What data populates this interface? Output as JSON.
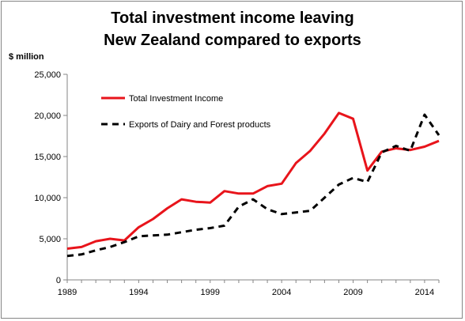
{
  "title_lines": [
    "Total investment income leaving",
    "New Zealand compared to exports"
  ],
  "chart_data": {
    "type": "line",
    "title": "Total investment income leaving New Zealand compared to exports",
    "ylabel": "$ million",
    "xlabel": "",
    "ylim": [
      0,
      25000
    ],
    "yticks": [
      0,
      5000,
      10000,
      15000,
      20000,
      25000
    ],
    "ytick_labels": [
      "0",
      "5,000",
      "10,000",
      "15,000",
      "20,000",
      "25,000"
    ],
    "xlim": [
      1989,
      2015
    ],
    "xticks": [
      1989,
      1994,
      1999,
      2004,
      2009,
      2014
    ],
    "xtick_labels": [
      "1989",
      "1994",
      "1999",
      "2004",
      "2009",
      "2014"
    ],
    "grid": "none",
    "legend_position": "upper-left inside plot",
    "x": [
      1989,
      1990,
      1991,
      1992,
      1993,
      1994,
      1995,
      1996,
      1997,
      1998,
      1999,
      2000,
      2001,
      2002,
      2003,
      2004,
      2005,
      2006,
      2007,
      2008,
      2009,
      2010,
      2011,
      2012,
      2013,
      2014,
      2015
    ],
    "series": [
      {
        "name": "Total Investment Income",
        "color": "#e8141b",
        "style": "solid",
        "values": [
          3800,
          4000,
          4700,
          5000,
          4800,
          6400,
          7400,
          8700,
          9800,
          9500,
          9400,
          10800,
          10500,
          10500,
          11400,
          11700,
          14200,
          15700,
          17800,
          20300,
          19600,
          13300,
          15600,
          16000,
          15800,
          16200,
          16900
        ]
      },
      {
        "name": "Exports of Dairy and Forest products",
        "color": "#000000",
        "style": "dashed",
        "values": [
          2900,
          3100,
          3600,
          4000,
          4600,
          5300,
          5400,
          5500,
          5800,
          6100,
          6300,
          6600,
          8900,
          9800,
          8600,
          8000,
          8200,
          8400,
          10000,
          11600,
          12400,
          11900,
          15500,
          16300,
          15700,
          20100,
          17600
        ]
      }
    ]
  }
}
